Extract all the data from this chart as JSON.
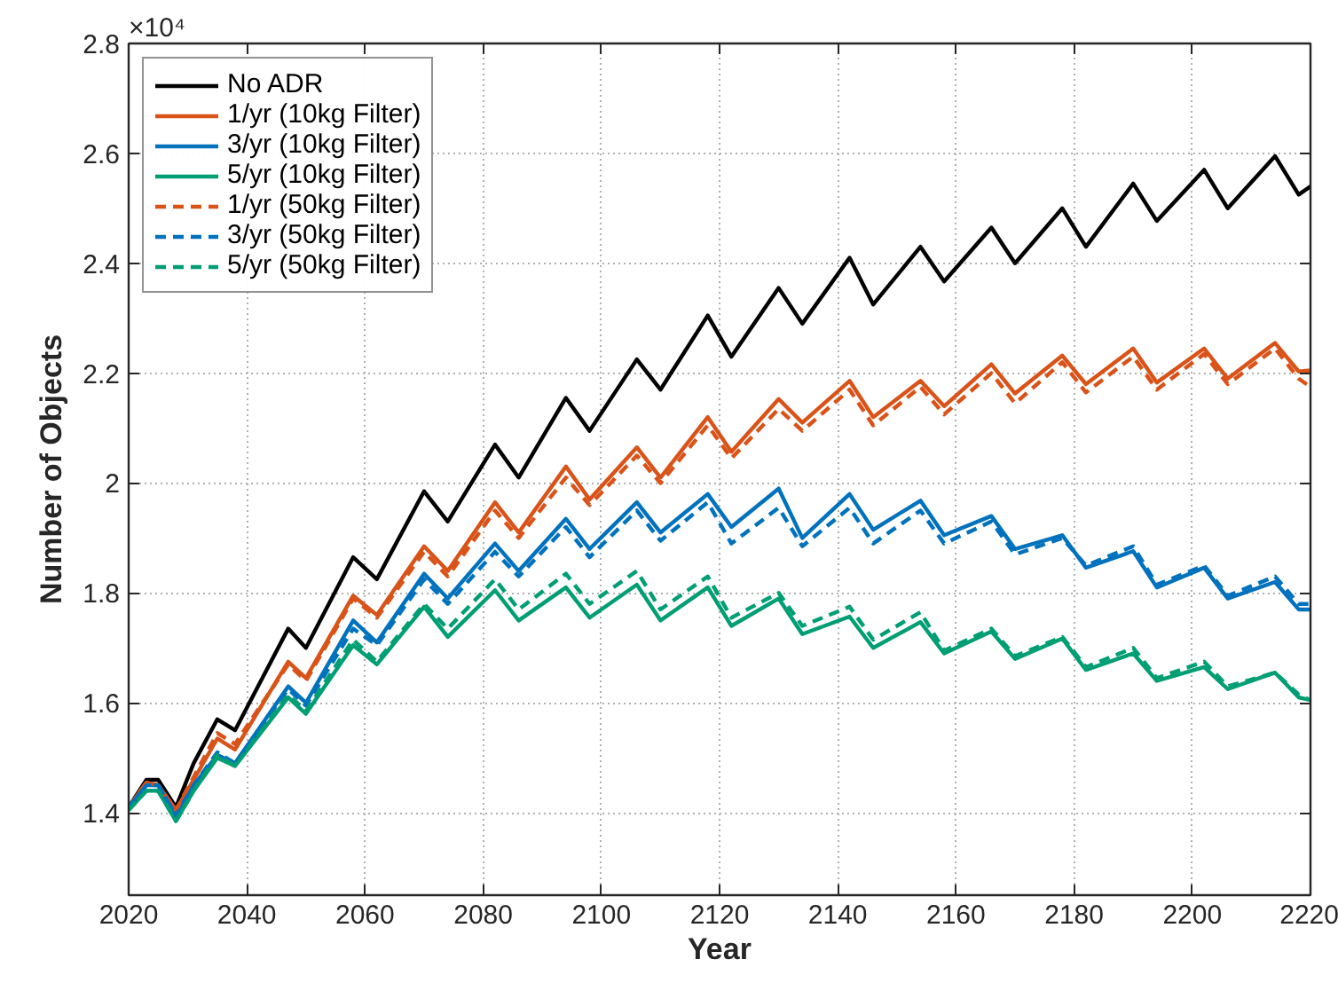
{
  "chart_data": {
    "type": "line",
    "xlabel": "Year",
    "ylabel": "Number of Objects",
    "annotations": [
      "×10⁴"
    ],
    "xlim": [
      2020,
      2220
    ],
    "xticks": [
      2020,
      2040,
      2060,
      2080,
      2100,
      2120,
      2140,
      2160,
      2180,
      2200,
      2220
    ],
    "ylim": [
      1.25,
      2.8
    ],
    "yticks": [
      1.4,
      1.6,
      1.8,
      2,
      2.2,
      2.4,
      2.6,
      2.8
    ],
    "grid": true,
    "legend": "top left",
    "marker": "none",
    "x": [
      2020,
      2023,
      2025,
      2028,
      2031,
      2035,
      2038,
      2047,
      2050,
      2058,
      2062,
      2070,
      2074,
      2082,
      2086,
      2094,
      2098,
      2106,
      2110,
      2118,
      2122,
      2130,
      2134,
      2142,
      2146,
      2154,
      2158,
      2166,
      2170,
      2178,
      2182,
      2190,
      2194,
      2202,
      2206,
      2214,
      2218,
      2220
    ],
    "series": [
      {
        "name": "No ADR",
        "color": "#000000",
        "line_style": "solid",
        "values": [
          1.41,
          1.46,
          1.46,
          1.41,
          1.49,
          1.57,
          1.55,
          1.735,
          1.7,
          1.865,
          1.825,
          1.985,
          1.93,
          2.07,
          2.01,
          2.155,
          2.095,
          2.225,
          2.17,
          2.305,
          2.23,
          2.355,
          2.29,
          2.41,
          2.325,
          2.43,
          2.367,
          2.465,
          2.4,
          2.5,
          2.43,
          2.545,
          2.477,
          2.57,
          2.5,
          2.595,
          2.525,
          2.54
        ]
      },
      {
        "name": "1/yr (10kg Filter)",
        "color": "#d95319",
        "line_style": "solid",
        "values": [
          1.41,
          1.455,
          1.45,
          1.405,
          1.46,
          1.535,
          1.515,
          1.675,
          1.645,
          1.795,
          1.76,
          1.885,
          1.84,
          1.965,
          1.91,
          2.03,
          1.97,
          2.065,
          2.01,
          2.12,
          2.057,
          2.153,
          2.11,
          2.186,
          2.12,
          2.186,
          2.14,
          2.216,
          2.163,
          2.232,
          2.18,
          2.245,
          2.183,
          2.245,
          2.19,
          2.255,
          2.203,
          2.205
        ]
      },
      {
        "name": "3/yr (10kg Filter)",
        "color": "#0072bd",
        "line_style": "solid",
        "values": [
          1.41,
          1.45,
          1.45,
          1.395,
          1.45,
          1.505,
          1.49,
          1.63,
          1.6,
          1.75,
          1.71,
          1.835,
          1.79,
          1.89,
          1.84,
          1.935,
          1.88,
          1.965,
          1.91,
          1.98,
          1.92,
          1.99,
          1.9,
          1.98,
          1.915,
          1.968,
          1.905,
          1.94,
          1.88,
          1.905,
          1.846,
          1.876,
          1.81,
          1.846,
          1.79,
          1.82,
          1.77,
          1.77
        ]
      },
      {
        "name": "5/yr (10kg Filter)",
        "color": "#009e73",
        "line_style": "solid",
        "values": [
          1.405,
          1.44,
          1.44,
          1.385,
          1.44,
          1.5,
          1.485,
          1.61,
          1.58,
          1.705,
          1.67,
          1.775,
          1.72,
          1.805,
          1.75,
          1.81,
          1.755,
          1.815,
          1.75,
          1.81,
          1.74,
          1.79,
          1.725,
          1.757,
          1.7,
          1.747,
          1.69,
          1.73,
          1.68,
          1.717,
          1.66,
          1.69,
          1.64,
          1.665,
          1.625,
          1.655,
          1.61,
          1.605
        ]
      },
      {
        "name": "1/yr (50kg Filter)",
        "color": "#d95319",
        "line_style": "dashed",
        "values": [
          1.41,
          1.455,
          1.45,
          1.405,
          1.465,
          1.545,
          1.525,
          1.67,
          1.64,
          1.79,
          1.755,
          1.875,
          1.83,
          1.95,
          1.9,
          2.01,
          1.96,
          2.05,
          2.0,
          2.105,
          2.045,
          2.135,
          2.095,
          2.17,
          2.105,
          2.175,
          2.125,
          2.2,
          2.145,
          2.22,
          2.165,
          2.23,
          2.17,
          2.235,
          2.18,
          2.245,
          2.19,
          2.175
        ]
      },
      {
        "name": "3/yr (50kg Filter)",
        "color": "#0072bd",
        "line_style": "dashed",
        "values": [
          1.41,
          1.45,
          1.45,
          1.395,
          1.45,
          1.51,
          1.49,
          1.625,
          1.595,
          1.735,
          1.705,
          1.825,
          1.78,
          1.875,
          1.83,
          1.92,
          1.865,
          1.95,
          1.895,
          1.965,
          1.89,
          1.955,
          1.885,
          1.955,
          1.89,
          1.95,
          1.89,
          1.93,
          1.87,
          1.9,
          1.85,
          1.885,
          1.815,
          1.85,
          1.795,
          1.83,
          1.78,
          1.78
        ]
      },
      {
        "name": "5/yr (50kg Filter)",
        "color": "#009e73",
        "line_style": "dashed",
        "values": [
          1.405,
          1.44,
          1.44,
          1.385,
          1.44,
          1.505,
          1.485,
          1.615,
          1.585,
          1.715,
          1.675,
          1.78,
          1.735,
          1.825,
          1.77,
          1.835,
          1.78,
          1.84,
          1.77,
          1.83,
          1.755,
          1.8,
          1.74,
          1.775,
          1.715,
          1.765,
          1.695,
          1.735,
          1.685,
          1.72,
          1.665,
          1.7,
          1.645,
          1.675,
          1.63,
          1.655,
          1.615,
          1.605
        ]
      }
    ]
  }
}
